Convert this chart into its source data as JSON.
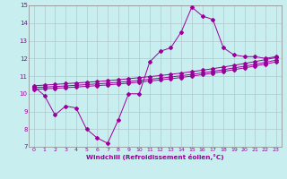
{
  "x": [
    0,
    1,
    2,
    3,
    4,
    5,
    6,
    7,
    8,
    9,
    10,
    11,
    12,
    13,
    14,
    15,
    16,
    17,
    18,
    19,
    20,
    21,
    22,
    23
  ],
  "y_main": [
    10.4,
    9.9,
    8.8,
    9.3,
    9.2,
    8.0,
    7.5,
    7.2,
    8.5,
    10.0,
    10.0,
    11.8,
    12.4,
    12.6,
    13.5,
    14.9,
    14.4,
    14.2,
    12.6,
    12.2,
    12.1,
    12.1,
    12.0,
    12.1
  ],
  "y_reg1": [
    10.35,
    10.38,
    10.41,
    10.44,
    10.48,
    10.52,
    10.56,
    10.6,
    10.65,
    10.7,
    10.76,
    10.82,
    10.88,
    10.95,
    11.02,
    11.1,
    11.18,
    11.27,
    11.36,
    11.46,
    11.56,
    11.67,
    11.78,
    11.9
  ],
  "y_reg2": [
    10.45,
    10.49,
    10.53,
    10.57,
    10.61,
    10.65,
    10.69,
    10.74,
    10.79,
    10.85,
    10.91,
    10.97,
    11.03,
    11.1,
    11.17,
    11.25,
    11.33,
    11.42,
    11.51,
    11.61,
    11.71,
    11.82,
    11.93,
    12.05
  ],
  "y_reg3": [
    10.25,
    10.28,
    10.31,
    10.34,
    10.38,
    10.42,
    10.46,
    10.5,
    10.55,
    10.6,
    10.66,
    10.72,
    10.78,
    10.85,
    10.92,
    11.0,
    11.08,
    11.17,
    11.26,
    11.36,
    11.46,
    11.57,
    11.68,
    11.8
  ],
  "ylim": [
    7,
    15
  ],
  "xlim": [
    -0.5,
    23.5
  ],
  "yticks": [
    7,
    8,
    9,
    10,
    11,
    12,
    13,
    14,
    15
  ],
  "xticks": [
    0,
    1,
    2,
    3,
    4,
    5,
    6,
    7,
    8,
    9,
    10,
    11,
    12,
    13,
    14,
    15,
    16,
    17,
    18,
    19,
    20,
    21,
    22,
    23
  ],
  "line_color": "#990099",
  "bg_color": "#c8eef0",
  "grid_color": "#b0c8cc",
  "xlabel": "Windchill (Refroidissement éolien,°C)",
  "font_color": "#990099",
  "marker": "D",
  "marker_size": 2.0,
  "linewidth": 0.7
}
